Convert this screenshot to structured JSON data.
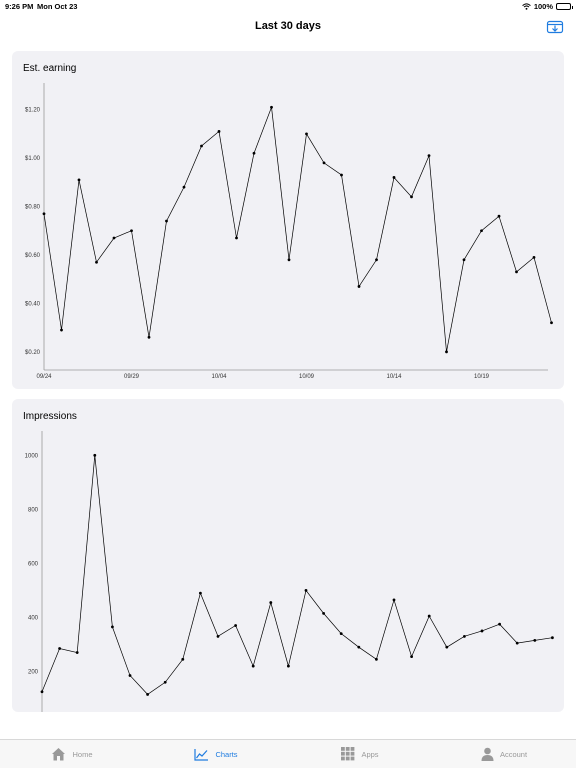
{
  "status": {
    "time": "9:26 PM",
    "date": "Mon Oct 23",
    "battery": "100%",
    "battery_level": 1.0
  },
  "nav": {
    "title": "Last 30 days",
    "download_icon": "download-tray-icon"
  },
  "colors": {
    "accent": "#1f7ce0",
    "card_bg": "#f1f1f5",
    "inactive_tab": "#999999",
    "line": "#000000"
  },
  "tabs": [
    {
      "label": "Home",
      "icon": "house-icon",
      "active": false
    },
    {
      "label": "Charts",
      "icon": "chart-line-icon",
      "active": true
    },
    {
      "label": "Apps",
      "icon": "grid-icon",
      "active": false
    },
    {
      "label": "Account",
      "icon": "person-icon",
      "active": false
    }
  ],
  "chart_data": [
    {
      "type": "line",
      "title": "Est. earning",
      "x": [
        "09/24",
        "09/25",
        "09/26",
        "09/27",
        "09/28",
        "09/29",
        "09/30",
        "10/01",
        "10/02",
        "10/03",
        "10/04",
        "10/05",
        "10/06",
        "10/07",
        "10/08",
        "10/09",
        "10/10",
        "10/11",
        "10/12",
        "10/13",
        "10/14",
        "10/15",
        "10/16",
        "10/17",
        "10/18",
        "10/19",
        "10/20",
        "10/21",
        "10/22",
        "10/23"
      ],
      "values": [
        0.77,
        0.29,
        0.91,
        0.57,
        0.67,
        0.7,
        0.26,
        0.74,
        0.88,
        1.05,
        1.11,
        0.67,
        1.02,
        1.21,
        0.58,
        1.1,
        0.98,
        0.93,
        0.47,
        0.58,
        0.92,
        0.84,
        1.01,
        0.2,
        0.58,
        0.7,
        0.76,
        0.53,
        0.59,
        0.32
      ],
      "x_ticks": [
        "09/24",
        "09/29",
        "10/04",
        "10/09",
        "10/14",
        "10/19"
      ],
      "y_ticks": [
        "$0.20",
        "$0.40",
        "$0.60",
        "$0.80",
        "$1.00",
        "$1.20"
      ],
      "y_tick_values": [
        0.2,
        0.4,
        0.6,
        0.8,
        1.0,
        1.2
      ],
      "ylim": [
        0.125,
        1.31
      ],
      "grid": false,
      "legend": "none"
    },
    {
      "type": "line",
      "title": "Impressions",
      "x": [
        "09/24",
        "09/25",
        "09/26",
        "09/27",
        "09/28",
        "09/29",
        "09/30",
        "10/01",
        "10/02",
        "10/03",
        "10/04",
        "10/05",
        "10/06",
        "10/07",
        "10/08",
        "10/09",
        "10/10",
        "10/11",
        "10/12",
        "10/13",
        "10/14",
        "10/15",
        "10/16",
        "10/17",
        "10/18",
        "10/19",
        "10/20",
        "10/21",
        "10/22",
        "10/23"
      ],
      "values": [
        125,
        285,
        270,
        1000,
        365,
        185,
        115,
        160,
        245,
        490,
        330,
        370,
        220,
        455,
        220,
        500,
        415,
        340,
        290,
        245,
        465,
        255,
        405,
        290,
        330,
        350,
        375,
        305,
        315,
        325
      ],
      "x_ticks": [],
      "y_ticks": [
        "200",
        "400",
        "600",
        "800",
        "1000"
      ],
      "y_tick_values": [
        200,
        400,
        600,
        800,
        1000
      ],
      "ylim": [
        50,
        1090
      ],
      "grid": false,
      "legend": "none"
    }
  ]
}
